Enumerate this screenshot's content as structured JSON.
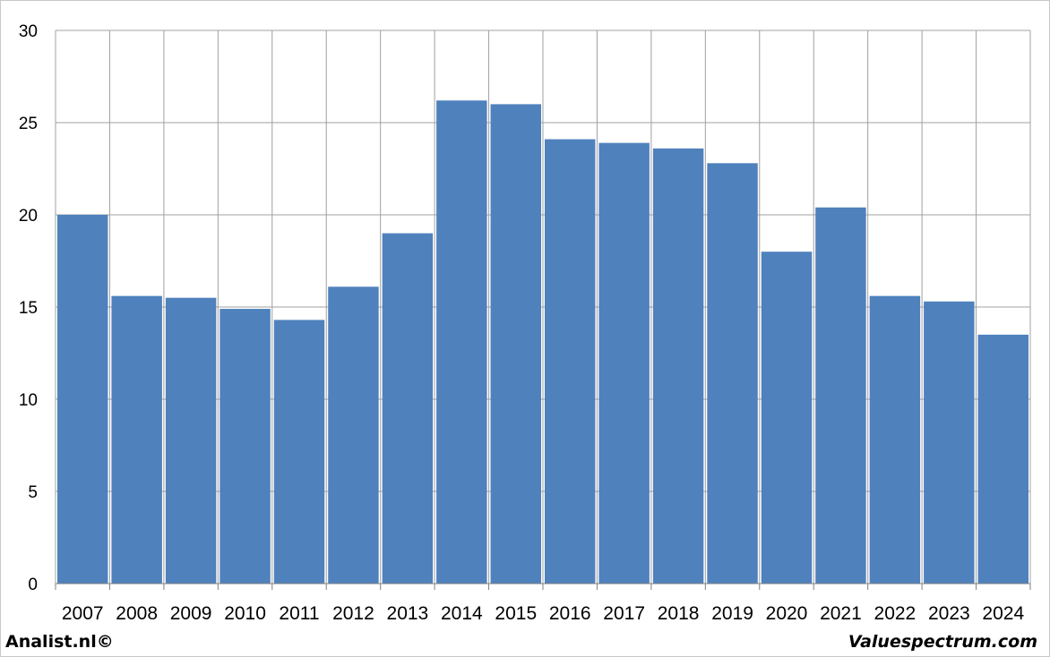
{
  "chart_data": {
    "type": "bar",
    "categories": [
      "2007",
      "2008",
      "2009",
      "2010",
      "2011",
      "2012",
      "2013",
      "2014",
      "2015",
      "2016",
      "2017",
      "2018",
      "2019",
      "2020",
      "2021",
      "2022",
      "2023",
      "2024"
    ],
    "values": [
      20.0,
      15.6,
      15.5,
      14.9,
      14.3,
      16.1,
      19.0,
      26.2,
      26.0,
      24.1,
      23.9,
      23.6,
      22.8,
      18.0,
      20.4,
      15.6,
      15.3,
      13.5
    ],
    "ylim": [
      0,
      30
    ],
    "yticks": [
      0,
      5,
      10,
      15,
      20,
      25,
      30
    ],
    "grid": true,
    "bar_color": "#4f81bd",
    "grid_color": "#a0a0a0"
  },
  "footer": {
    "left": "Analist.nl©",
    "right": "Valuespectrum.com"
  }
}
